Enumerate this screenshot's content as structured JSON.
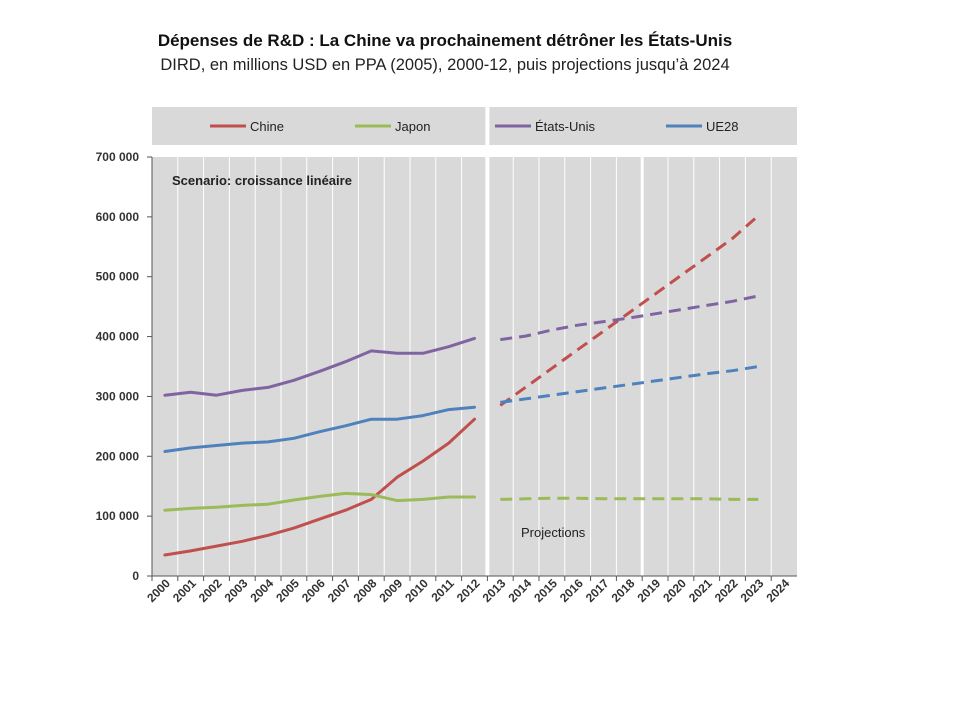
{
  "chart_data": {
    "type": "line",
    "title": "Dépenses de R&D : La Chine va prochainement détrôner les États-Unis",
    "subtitle": "DIRD, en millions USD en PPA (2005), 2000-12, puis projections jusqu’à 2024",
    "xlabel": "",
    "ylabel": "",
    "ylim": [
      0,
      700000
    ],
    "yticks": [
      "0",
      "100 000",
      "200 000",
      "300 000",
      "400 000",
      "500 000",
      "600 000",
      "700 000"
    ],
    "x": [
      2000,
      2001,
      2002,
      2003,
      2004,
      2005,
      2006,
      2007,
      2008,
      2009,
      2010,
      2011,
      2012,
      2013,
      2014,
      2015,
      2016,
      2017,
      2018,
      2019,
      2020,
      2021,
      2022,
      2023,
      2024
    ],
    "projection_start": 2013,
    "grid": true,
    "legend_position": "top",
    "annotations": [
      "Scenario: croissance linéaire",
      "Projections"
    ],
    "series": [
      {
        "name": "Chine",
        "color": "#c0504d",
        "historical": [
          35000,
          42000,
          50000,
          58000,
          68000,
          80000,
          95000,
          110000,
          128000,
          165000,
          192000,
          222000,
          262000
        ],
        "projection": [
          285000,
          316000,
          347000,
          378000,
          409000,
          440000,
          471000,
          502000,
          533000,
          564000,
          602000
        ]
      },
      {
        "name": "Japon",
        "color": "#9bbb59",
        "historical": [
          110000,
          113000,
          115000,
          118000,
          120000,
          127000,
          133000,
          138000,
          136000,
          126000,
          128000,
          132000,
          132000
        ],
        "projection": [
          128000,
          129000,
          130000,
          130000,
          129000,
          129000,
          129000,
          129000,
          129000,
          128000,
          128000
        ]
      },
      {
        "name": "États-Unis",
        "color": "#8064a2",
        "historical": [
          302000,
          307000,
          302000,
          310000,
          315000,
          327000,
          342000,
          358000,
          376000,
          372000,
          372000,
          383000,
          397000
        ],
        "projection": [
          395000,
          401000,
          411000,
          419000,
          425000,
          431000,
          438000,
          445000,
          452000,
          459000,
          468000
        ]
      },
      {
        "name": "UE28",
        "color": "#4f81bd",
        "historical": [
          208000,
          214000,
          218000,
          222000,
          224000,
          230000,
          241000,
          251000,
          262000,
          262000,
          268000,
          278000,
          282000
        ],
        "projection": [
          290000,
          296000,
          302000,
          308000,
          314000,
          320000,
          326000,
          332000,
          338000,
          343000,
          350000
        ]
      }
    ]
  }
}
